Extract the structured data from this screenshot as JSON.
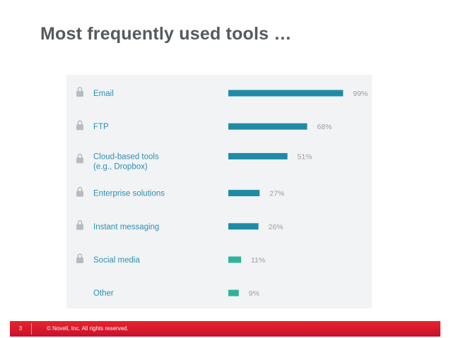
{
  "slide": {
    "title": "Most frequently used tools …",
    "page_number": "3",
    "copyright": "© Novell, Inc.  All rights reserved."
  },
  "colors": {
    "title": "#555a5f",
    "label": "#2f8fb3",
    "value": "#9a9fa4",
    "bar_blue": "#1f8aa6",
    "bar_teal": "#2fb29a",
    "panel": "#f1f3f4",
    "lock": "#b8bcbf",
    "footer": "#d7192d"
  },
  "chart_data": {
    "type": "bar",
    "orientation": "horizontal",
    "categories": [
      [
        "Email"
      ],
      [
        "FTP"
      ],
      [
        "Cloud-based  tools",
        "(e.g., Dropbox)"
      ],
      [
        "Enterprise solutions"
      ],
      [
        "Instant messaging"
      ],
      [
        "Social media"
      ],
      [
        "Other"
      ]
    ],
    "values": [
      99,
      68,
      51,
      27,
      26,
      11,
      9
    ],
    "value_labels": [
      "99%",
      "68%",
      "51%",
      "27%",
      "26%",
      "11%",
      "9%"
    ],
    "icons": [
      "lock-icon",
      "lock-icon",
      "lock-icon",
      "lock-icon",
      "lock-icon",
      "lock-icon",
      ""
    ],
    "bar_colors": [
      "#1f8aa6",
      "#1f8aa6",
      "#1f8aa6",
      "#1f8aa6",
      "#1f8aa6",
      "#2fb29a",
      "#2fb29a"
    ],
    "xlim": [
      0,
      100
    ],
    "unit": "%",
    "grid": false,
    "legend": "none"
  }
}
